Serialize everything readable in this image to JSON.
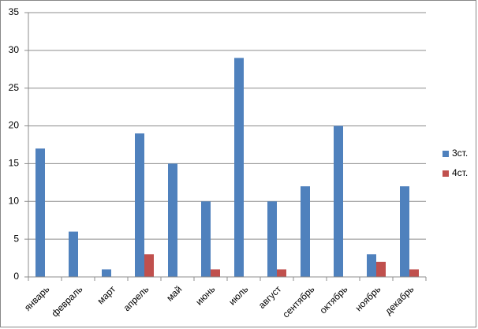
{
  "chart_data": {
    "type": "bar",
    "categories": [
      "январь",
      "февраль",
      "март",
      "апрель",
      "май",
      "июнь",
      "июль",
      "август",
      "сентябрь",
      "октябрь",
      "ноябрь",
      "декабрь"
    ],
    "series": [
      {
        "name": "3ст.",
        "color": "#4f81bd",
        "values": [
          17,
          6,
          1,
          19,
          15,
          10,
          29,
          10,
          12,
          20,
          3,
          12
        ]
      },
      {
        "name": "4ст.",
        "color": "#c0504d",
        "values": [
          0,
          0,
          0,
          3,
          0,
          1,
          0,
          1,
          0,
          0,
          2,
          1
        ]
      }
    ],
    "ylim": [
      0,
      35
    ],
    "yticks": [
      0,
      5,
      10,
      15,
      20,
      25,
      30,
      35
    ],
    "grid": true,
    "legend": "right"
  }
}
